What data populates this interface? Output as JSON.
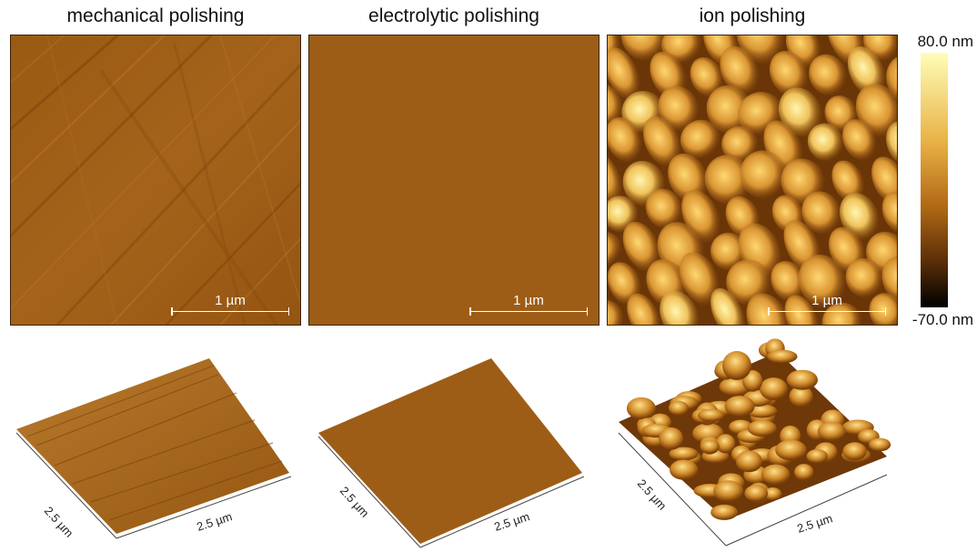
{
  "panels": [
    {
      "title": "mechanical polishing",
      "scale_label": "1 µm"
    },
    {
      "title": "electrolytic polishing",
      "scale_label": "1 µm"
    },
    {
      "title": "ion polishing",
      "scale_label": "1 µm"
    }
  ],
  "colorbar": {
    "max_label": "80.0 nm",
    "min_label": "-70.0 nm",
    "colors": [
      "#fffdb8",
      "#e8b245",
      "#b26a15",
      "#5a2e07",
      "#000000"
    ]
  },
  "views3d": [
    {
      "axis_left": "2.5 µm",
      "axis_right": "2.5 µm"
    },
    {
      "axis_left": "2.5 µm",
      "axis_right": "2.5 µm"
    },
    {
      "axis_left": "2.5 µm",
      "axis_right": "2.5 µm"
    }
  ]
}
